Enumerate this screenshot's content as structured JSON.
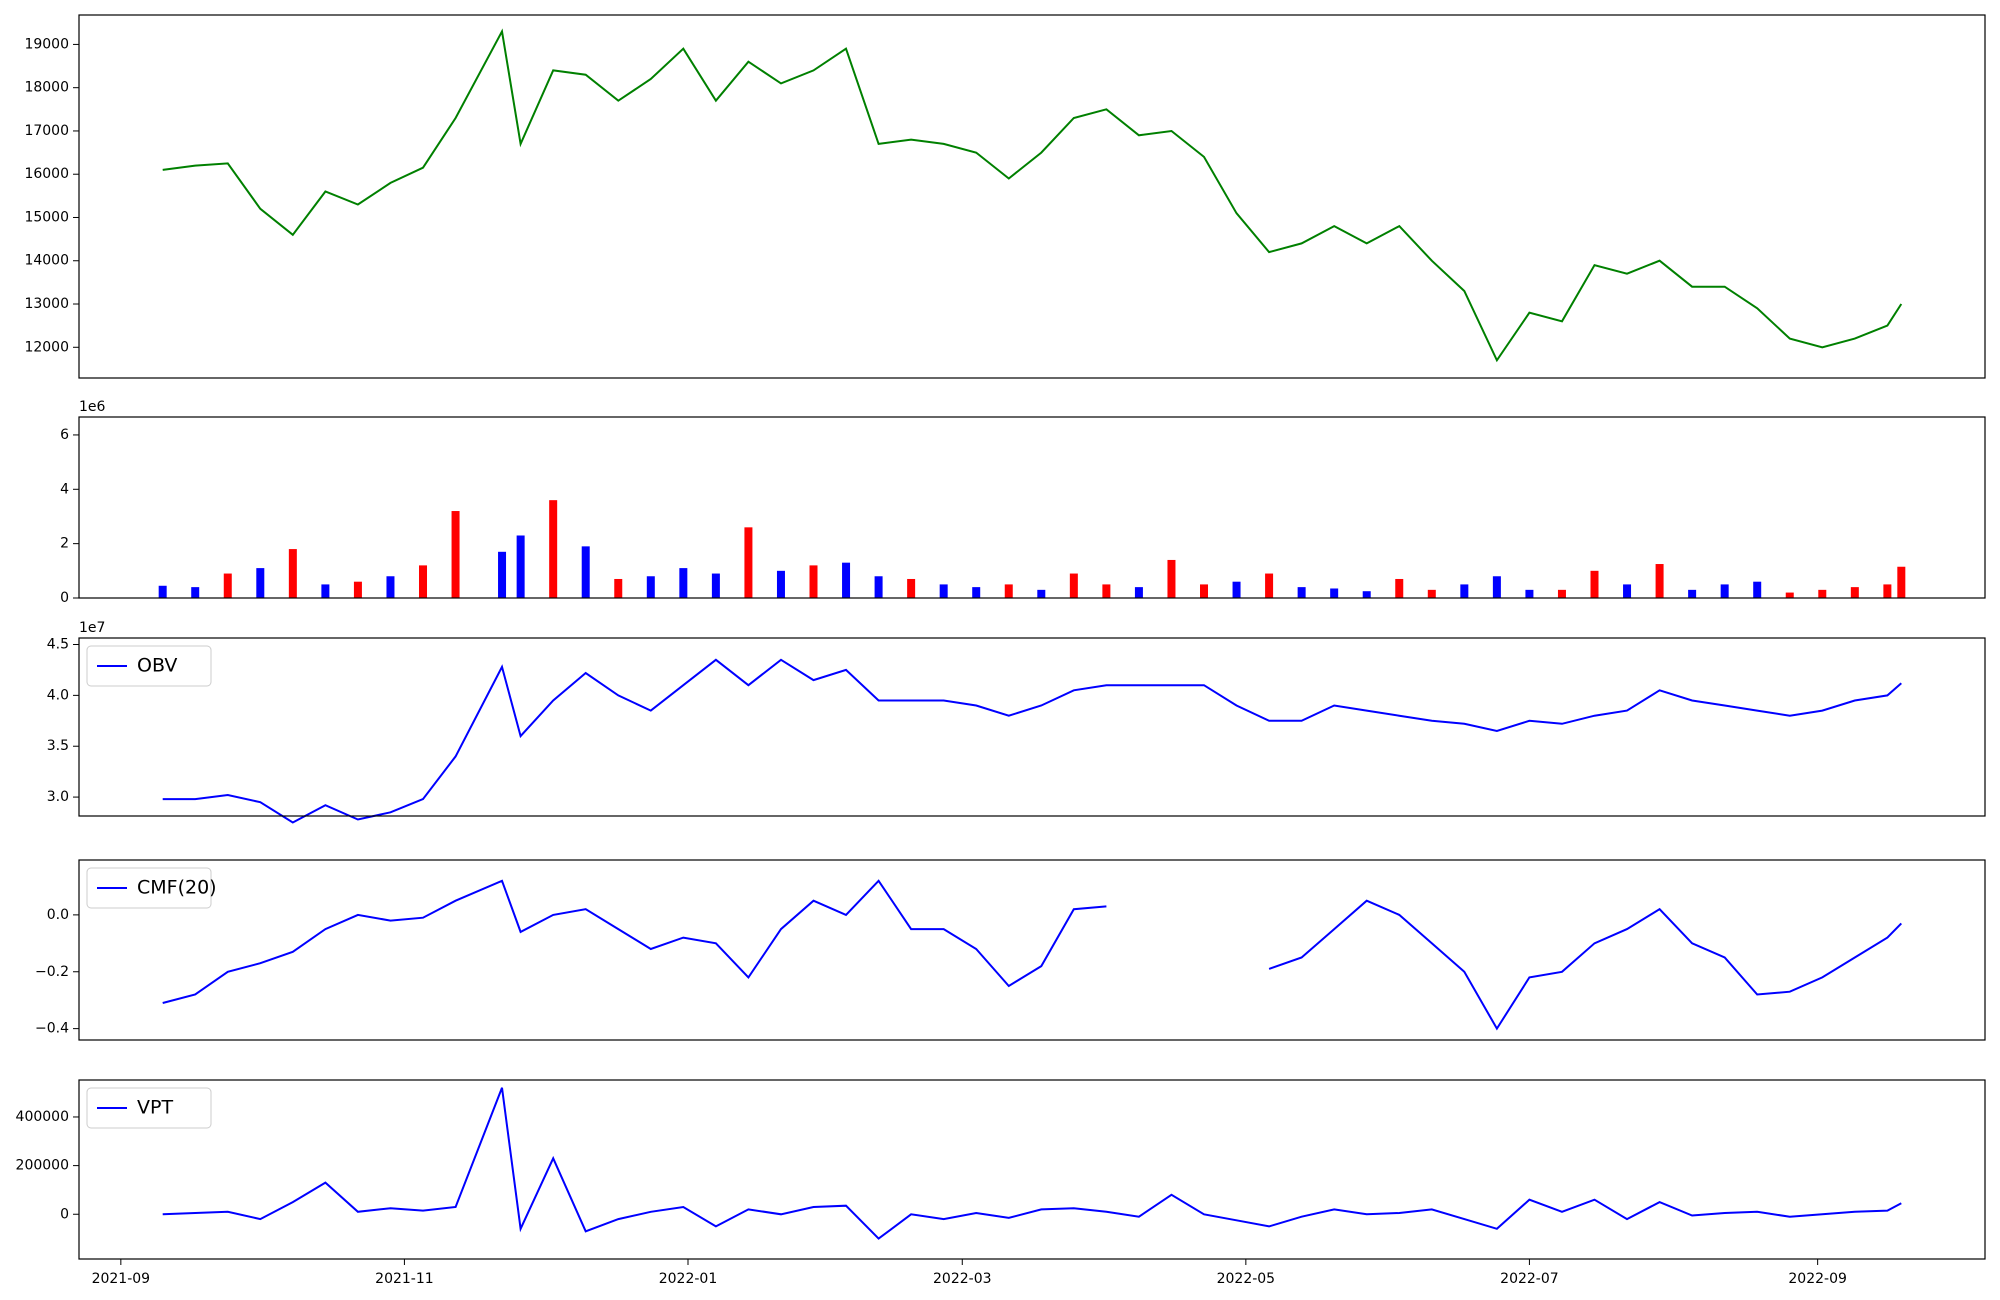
{
  "chart_data": [
    {
      "type": "line",
      "color": "#008000",
      "x": [
        9,
        16,
        23,
        30,
        37,
        44,
        51,
        58,
        65,
        72,
        82,
        86,
        93,
        100,
        107,
        114,
        121,
        128,
        135,
        142,
        149,
        156,
        163,
        170,
        177,
        184,
        191,
        198,
        205,
        212,
        219,
        226,
        233,
        240,
        247,
        254,
        261,
        268,
        275,
        282,
        289,
        296,
        303,
        310,
        317,
        324,
        331,
        338,
        345,
        352,
        359,
        366,
        373,
        380,
        383
      ],
      "values": [
        16100,
        16200,
        16250,
        15200,
        14600,
        15600,
        15300,
        15800,
        16150,
        17300,
        19300,
        16700,
        18400,
        18300,
        17700,
        18200,
        18900,
        17700,
        18600,
        18100,
        18400,
        18900,
        16700,
        16800,
        16700,
        16500,
        15900,
        16500,
        17300,
        17500,
        16900,
        17000,
        16400,
        15100,
        14200,
        14400,
        14800,
        14400,
        14800,
        14000,
        13300,
        11700,
        12800,
        12600,
        13900,
        13700,
        14000,
        13400,
        13400,
        12900,
        12200,
        12000,
        12200,
        12500,
        13000
      ],
      "xlim": [
        -9,
        401
      ],
      "ylim": [
        11290,
        19680
      ],
      "yticks": [
        12000,
        13000,
        14000,
        15000,
        16000,
        17000,
        18000,
        19000
      ]
    },
    {
      "type": "bar",
      "offset_label": "1e6",
      "x": [
        9,
        16,
        23,
        30,
        37,
        44,
        51,
        58,
        65,
        72,
        82,
        86,
        93,
        100,
        107,
        114,
        121,
        128,
        135,
        142,
        149,
        156,
        163,
        170,
        177,
        184,
        191,
        198,
        205,
        212,
        219,
        226,
        233,
        240,
        247,
        254,
        261,
        268,
        275,
        282,
        289,
        296,
        303,
        310,
        317,
        324,
        331,
        338,
        345,
        352,
        359,
        366,
        373,
        380,
        383
      ],
      "values": [
        450000,
        400000,
        900000,
        1100000,
        1800000,
        500000,
        600000,
        800000,
        1200000,
        3200000,
        1700000,
        2300000,
        3600000,
        1900000,
        700000,
        800000,
        1100000,
        900000,
        2600000,
        1000000,
        1200000,
        1300000,
        800000,
        700000,
        500000,
        400000,
        500000,
        300000,
        900000,
        500000,
        400000,
        1400000,
        500000,
        600000,
        900000,
        400000,
        350000,
        250000,
        700000,
        300000,
        500000,
        800000,
        300000,
        300000,
        1000000,
        500000,
        1250000,
        300000,
        500000,
        600000,
        200000,
        300000,
        400000,
        500000,
        1150000
      ],
      "colors": [
        "#0000ff",
        "#0000ff",
        "#ff0000",
        "#0000ff",
        "#ff0000",
        "#0000ff",
        "#ff0000",
        "#0000ff",
        "#ff0000",
        "#ff0000",
        "#0000ff",
        "#0000ff",
        "#ff0000",
        "#0000ff",
        "#ff0000",
        "#0000ff",
        "#0000ff",
        "#0000ff",
        "#ff0000",
        "#0000ff",
        "#ff0000",
        "#0000ff",
        "#0000ff",
        "#ff0000",
        "#0000ff",
        "#0000ff",
        "#ff0000",
        "#0000ff",
        "#ff0000",
        "#ff0000",
        "#0000ff",
        "#ff0000",
        "#ff0000",
        "#0000ff",
        "#ff0000",
        "#0000ff",
        "#0000ff",
        "#0000ff",
        "#ff0000",
        "#ff0000",
        "#0000ff",
        "#0000ff",
        "#0000ff",
        "#ff0000",
        "#ff0000",
        "#0000ff",
        "#ff0000",
        "#0000ff",
        "#0000ff",
        "#0000ff",
        "#ff0000",
        "#ff0000",
        "#ff0000",
        "#ff0000",
        "#ff0000"
      ],
      "xlim": [
        -9,
        401
      ],
      "ylim": [
        0,
        6660000
      ],
      "yticks": [
        0,
        {
          "value": 2000000,
          "label": "2"
        },
        {
          "value": 4000000,
          "label": "4"
        },
        {
          "value": 6000000,
          "label": "6"
        }
      ]
    },
    {
      "type": "line",
      "offset_label": "1e7",
      "x": [
        9,
        16,
        23,
        30,
        37,
        44,
        51,
        58,
        65,
        72,
        82,
        86,
        93,
        100,
        107,
        114,
        121,
        128,
        135,
        142,
        149,
        156,
        163,
        170,
        177,
        184,
        191,
        198,
        205,
        212,
        219,
        226,
        233,
        240,
        247,
        254,
        261,
        268,
        275,
        282,
        289,
        296,
        303,
        310,
        317,
        324,
        331,
        338,
        345,
        352,
        359,
        366,
        373,
        380,
        383
      ],
      "series": [
        {
          "name": "OBV",
          "color": "#0000ff",
          "values": [
            29800000,
            29800000,
            30200000,
            29500000,
            27500000,
            29200000,
            27800000,
            28500000,
            29800000,
            34000000,
            42800000,
            36000000,
            39500000,
            42200000,
            40000000,
            38500000,
            41000000,
            43500000,
            41000000,
            43500000,
            41500000,
            42500000,
            39500000,
            39500000,
            39500000,
            39000000,
            38000000,
            39000000,
            40500000,
            41000000,
            41000000,
            41000000,
            41000000,
            39000000,
            37500000,
            37500000,
            39000000,
            38500000,
            38000000,
            37500000,
            37200000,
            36500000,
            37500000,
            37200000,
            38000000,
            38500000,
            40500000,
            39500000,
            39000000,
            38500000,
            38000000,
            38500000,
            39500000,
            40000000,
            41200000
          ]
        }
      ],
      "xlim": [
        -9,
        401
      ],
      "ylim": [
        28140000,
        45640000
      ],
      "yticks": [
        {
          "value": 30000000,
          "label": "3.0"
        },
        {
          "value": 35000000,
          "label": "3.5"
        },
        {
          "value": 40000000,
          "label": "4.0"
        },
        {
          "value": 45000000,
          "label": "4.5"
        }
      ]
    },
    {
      "type": "line",
      "x": [
        9,
        16,
        23,
        30,
        37,
        44,
        51,
        58,
        65,
        72,
        82,
        86,
        93,
        100,
        107,
        114,
        121,
        128,
        135,
        142,
        149,
        156,
        163,
        170,
        177,
        184,
        191,
        198,
        205,
        212,
        219,
        226,
        233,
        240,
        247,
        254,
        261,
        268,
        275,
        282,
        289,
        296,
        303,
        310,
        317,
        324,
        331,
        338,
        345,
        352,
        359,
        366,
        373,
        380,
        383
      ],
      "series": [
        {
          "name": "CMF(20)",
          "color": "#0000ff",
          "values": [
            -0.31,
            -0.28,
            -0.2,
            -0.17,
            -0.13,
            -0.05,
            0.0,
            -0.02,
            -0.01,
            0.05,
            0.12,
            -0.06,
            0.0,
            0.02,
            -0.05,
            -0.12,
            -0.08,
            -0.1,
            -0.22,
            -0.05,
            0.05,
            0.0,
            0.12,
            -0.05,
            -0.05,
            -0.12,
            -0.25,
            -0.18,
            0.02,
            0.03,
            null,
            null,
            null,
            null,
            -0.19,
            -0.15,
            -0.05,
            0.05,
            0.0,
            -0.1,
            -0.2,
            -0.4,
            -0.22,
            -0.2,
            -0.1,
            -0.05,
            0.02,
            -0.1,
            -0.15,
            -0.28,
            -0.27,
            -0.22,
            -0.15,
            -0.08,
            -0.03
          ]
        }
      ],
      "xlim": [
        -9,
        401
      ],
      "ylim": [
        -0.44,
        0.193
      ],
      "yticks": [
        {
          "value": -0.4,
          "label": "−0.4"
        },
        {
          "value": -0.2,
          "label": "−0.2"
        },
        {
          "value": 0,
          "label": "0.0"
        }
      ]
    },
    {
      "type": "line",
      "x": [
        9,
        16,
        23,
        30,
        37,
        44,
        51,
        58,
        65,
        72,
        82,
        86,
        93,
        100,
        107,
        114,
        121,
        128,
        135,
        142,
        149,
        156,
        163,
        170,
        177,
        184,
        191,
        198,
        205,
        212,
        219,
        226,
        233,
        240,
        247,
        254,
        261,
        268,
        275,
        282,
        289,
        296,
        303,
        310,
        317,
        324,
        331,
        338,
        345,
        352,
        359,
        366,
        373,
        380,
        383
      ],
      "series": [
        {
          "name": "VPT",
          "color": "#0000ff",
          "values": [
            0,
            5000,
            10000,
            -20000,
            50000,
            130000,
            10000,
            25000,
            15000,
            30000,
            520000,
            -60000,
            230000,
            -70000,
            -20000,
            10000,
            30000,
            -50000,
            20000,
            0,
            30000,
            35000,
            -100000,
            0,
            -20000,
            5000,
            -15000,
            20000,
            25000,
            10000,
            -10000,
            80000,
            0,
            -25000,
            -50000,
            -10000,
            20000,
            0,
            5000,
            20000,
            -20000,
            -60000,
            60000,
            10000,
            60000,
            -20000,
            50000,
            -5000,
            5000,
            10000,
            -10000,
            0,
            10000,
            15000,
            45000
          ]
        }
      ],
      "xlim": [
        -9,
        401
      ],
      "ylim": [
        -184000,
        552000
      ],
      "yticks": [
        0,
        200000,
        400000
      ],
      "xticks": [
        {
          "value": 0,
          "label": "2021-09"
        },
        {
          "value": 61,
          "label": "2021-11"
        },
        {
          "value": 122,
          "label": "2022-01"
        },
        {
          "value": 181,
          "label": "2022-03"
        },
        {
          "value": 242,
          "label": "2022-05"
        },
        {
          "value": 303,
          "label": "2022-07"
        },
        {
          "value": 365,
          "label": "2022-09"
        }
      ]
    }
  ]
}
